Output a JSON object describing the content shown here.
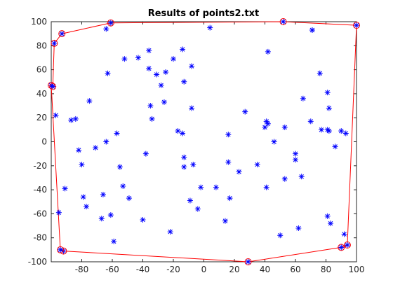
{
  "chart_data": {
    "type": "scatter",
    "title": "Results of points2.txt",
    "xlabel": "",
    "ylabel": "",
    "xlim": [
      -100,
      100
    ],
    "ylim": [
      -100,
      100
    ],
    "xticks": [
      -80,
      -60,
      -40,
      -20,
      0,
      20,
      40,
      60,
      80,
      100
    ],
    "yticks": [
      -100,
      -80,
      -60,
      -40,
      -20,
      0,
      20,
      40,
      60,
      80,
      100
    ],
    "grid": false,
    "colors": {
      "points": "#0000ff",
      "hull": "#ff0000",
      "axes": "#262626"
    },
    "series": [
      {
        "marker": "asterisk",
        "x": [
          -64,
          -63,
          -52,
          -43,
          -36,
          -36,
          -31,
          -28,
          -25,
          -20,
          -14,
          -13,
          -8,
          -8,
          -35,
          -34,
          -26,
          -17,
          -14,
          -13,
          -13,
          -7,
          -97,
          -87,
          -84,
          -82,
          -80,
          -75,
          -71,
          -66,
          -64,
          -57,
          -55,
          -53,
          -38,
          -91,
          -95,
          -79,
          -77,
          -67,
          -61,
          -59,
          -49,
          -40,
          -22,
          -9,
          -4,
          -2,
          4,
          8,
          14,
          16,
          16,
          17,
          23,
          27,
          35,
          40,
          41,
          41,
          42,
          42,
          46,
          50,
          53,
          53,
          60,
          60,
          62,
          64,
          65,
          70,
          71,
          71,
          76,
          77,
          81,
          81,
          81,
          82,
          82,
          83,
          86,
          90,
          92,
          93
        ],
        "y": [
          94,
          57,
          69,
          70,
          76,
          61,
          56,
          47,
          58,
          69,
          77,
          50,
          28,
          63,
          30,
          19,
          33,
          9,
          7,
          -13,
          -21,
          -19,
          22,
          18,
          19,
          -7,
          -19,
          34,
          -5,
          -44,
          0,
          7,
          -21,
          -37,
          -10,
          -39,
          -59,
          -46,
          -54,
          -64,
          -61,
          -83,
          -47,
          -65,
          -75,
          -49,
          -56,
          -38,
          95,
          -38,
          -66,
          6,
          -17,
          -47,
          -25,
          25,
          -19,
          12,
          -38,
          17,
          15,
          75,
          0,
          -78,
          12,
          -31,
          -10,
          -15,
          -72,
          -29,
          36,
          17,
          93,
          93,
          57,
          10,
          10,
          -62,
          41,
          28,
          9,
          -68,
          -4,
          9,
          -77,
          7
        ]
      },
      {
        "marker": "circle",
        "x": [
          -98,
          -93,
          -61,
          52,
          100,
          94,
          90,
          29,
          -92,
          -94,
          -100,
          -99,
          -98
        ],
        "y": [
          82,
          90,
          99,
          100,
          97,
          -86,
          -88,
          -100,
          -91,
          -90,
          47,
          46,
          82
        ]
      }
    ]
  }
}
